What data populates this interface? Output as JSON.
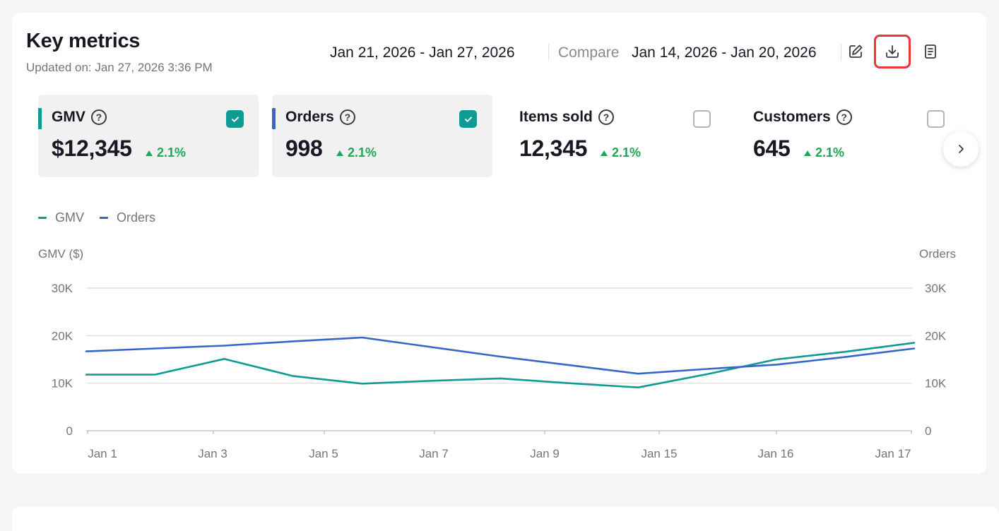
{
  "header": {
    "title": "Key metrics",
    "updated": "Updated on: Jan 27, 2026 3:36 PM",
    "date_range": "Jan 21, 2026 - Jan 27, 2026",
    "compare_label": "Compare",
    "compare_range": "Jan 14, 2026 - Jan 20, 2026",
    "icons": [
      "edit-icon",
      "download-icon",
      "report-icon"
    ]
  },
  "metrics": [
    {
      "label": "GMV",
      "value": "$12,345",
      "delta": "2.1%",
      "checked": true,
      "color": "#0f9a94"
    },
    {
      "label": "Orders",
      "value": "998",
      "delta": "2.1%",
      "checked": true,
      "color": "#3566c8"
    },
    {
      "label": "Items sold",
      "value": "12,345",
      "delta": "2.1%",
      "checked": false
    },
    {
      "label": "Customers",
      "value": "645",
      "delta": "2.1%",
      "checked": false
    }
  ],
  "legend": [
    "GMV",
    "Orders"
  ],
  "colors": {
    "gmv": "#0f9a94",
    "orders": "#3566c8",
    "positive": "#1ea757",
    "highlight": "#e8383a"
  },
  "chart_data": {
    "type": "line",
    "ylabel_left": "GMV ($)",
    "ylabel_right": "Orders",
    "ylim": [
      0,
      30000
    ],
    "y_ticks": [
      "0",
      "10K",
      "20K",
      "30K"
    ],
    "x_ticks": [
      "Jan 1",
      "Jan 3",
      "Jan 5",
      "Jan 7",
      "Jan 9",
      "Jan 15",
      "Jan 16",
      "Jan 17"
    ],
    "series": [
      {
        "name": "GMV",
        "values": [
          11800,
          11800,
          15100,
          11500,
          9900,
          10500,
          11000,
          10000,
          9100,
          11900,
          15000,
          16600,
          18500
        ]
      },
      {
        "name": "Orders",
        "values": [
          16700,
          17300,
          17900,
          18800,
          19600,
          17600,
          15600,
          13800,
          12000,
          13000,
          13900,
          15500,
          17300
        ]
      }
    ]
  }
}
